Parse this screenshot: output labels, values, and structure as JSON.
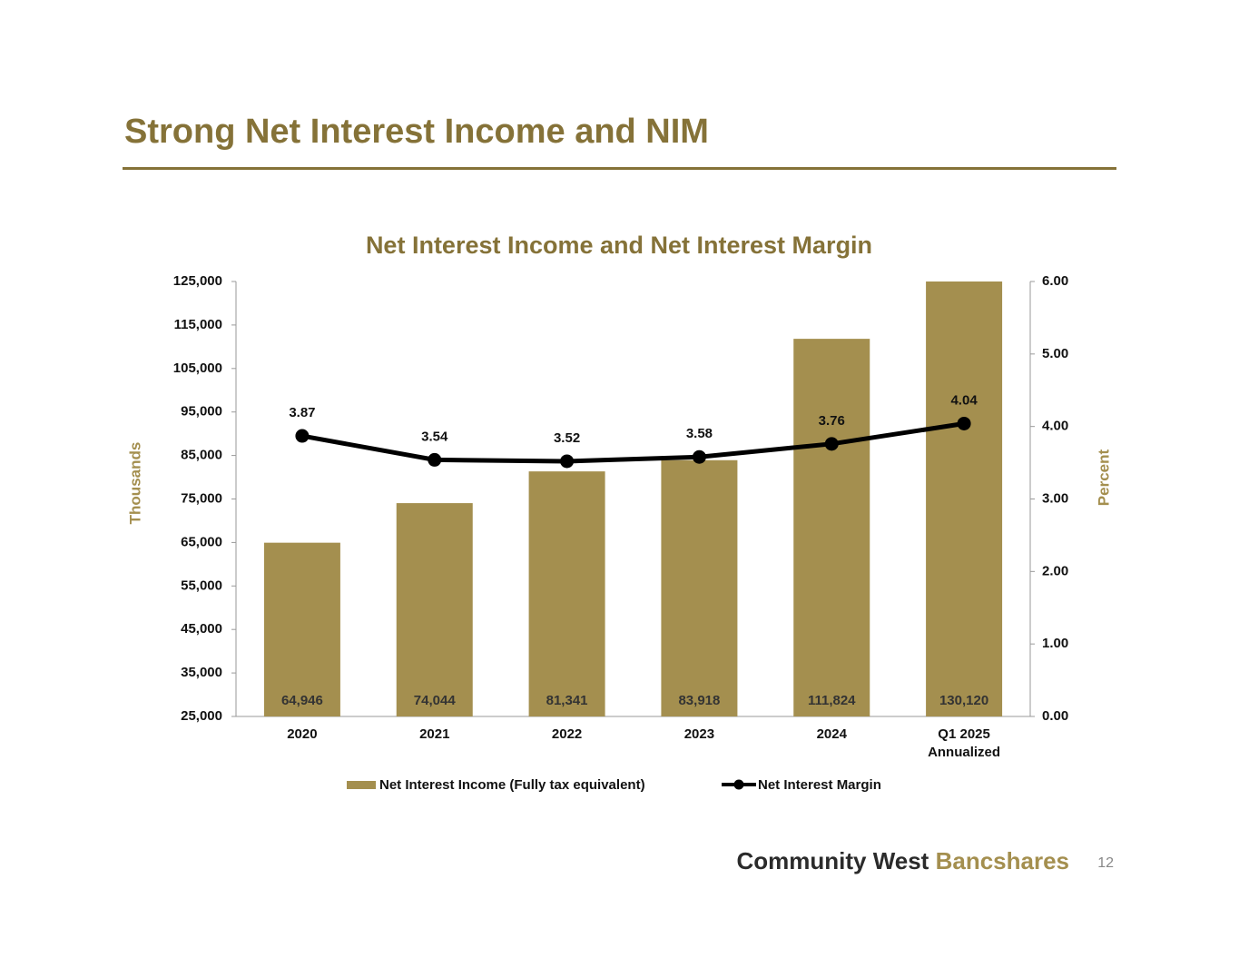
{
  "header": {
    "title": "Strong Net Interest Income and NIM"
  },
  "chart_data": {
    "type": "bar",
    "title": "Net Interest Income and Net Interest Margin",
    "categories": [
      "2020",
      "2021",
      "2022",
      "2023",
      "2024",
      "Q1 2025 Annualized"
    ],
    "series": [
      {
        "name": "Net Interest Income (Fully tax equivalent)",
        "type": "bar",
        "color": "#a48f4f",
        "values": [
          64946,
          74044,
          81341,
          83918,
          111824,
          130120
        ],
        "value_labels": [
          "64,946",
          "74,044",
          "81,341",
          "83,918",
          "111,824",
          "130,120"
        ]
      },
      {
        "name": "Net Interest Margin",
        "type": "line",
        "axis": "y2",
        "color": "#000000",
        "values": [
          3.87,
          3.54,
          3.52,
          3.58,
          3.76,
          4.04
        ]
      }
    ],
    "ylabel": "Thousands",
    "y2label": "Percent",
    "ylim": [
      25000,
      125000
    ],
    "yticks": [
      {
        "value": 25000,
        "label": "25,000"
      },
      {
        "value": 35000,
        "label": "35,000"
      },
      {
        "value": 45000,
        "label": "45,000"
      },
      {
        "value": 55000,
        "label": "55,000"
      },
      {
        "value": 65000,
        "label": "65,000"
      },
      {
        "value": 75000,
        "label": "75,000"
      },
      {
        "value": 85000,
        "label": "85,000"
      },
      {
        "value": 95000,
        "label": "95,000"
      },
      {
        "value": 105000,
        "label": "105,000"
      },
      {
        "value": 115000,
        "label": "115,000"
      },
      {
        "value": 125000,
        "label": "125,000"
      }
    ],
    "y2lim": [
      0,
      6
    ],
    "y2ticks": [
      {
        "value": 0,
        "label": "0.00"
      },
      {
        "value": 1,
        "label": "1.00"
      },
      {
        "value": 2,
        "label": "2.00"
      },
      {
        "value": 3,
        "label": "3.00"
      },
      {
        "value": 4,
        "label": "4.00"
      },
      {
        "value": 5,
        "label": "5.00"
      },
      {
        "value": 6,
        "label": "6.00"
      }
    ],
    "legend": "bottom"
  },
  "footer": {
    "brand_dark": "Community West",
    "brand_gold": "Bancshares",
    "page": "12"
  }
}
